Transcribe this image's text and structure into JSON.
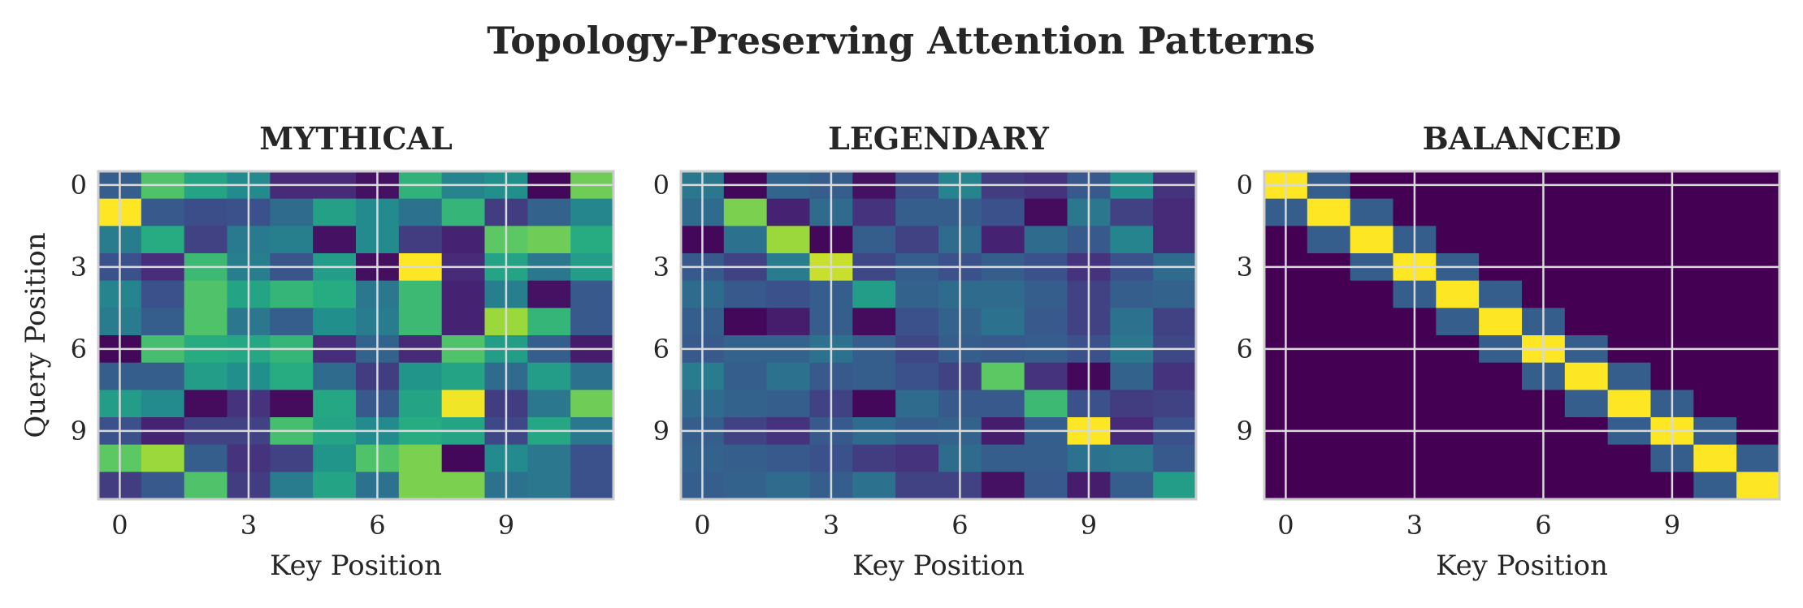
{
  "chart_data": {
    "type": "heatmap",
    "title": "Topology-Preserving Attention Patterns",
    "colormap": "viridis",
    "grid": true,
    "panels": [
      {
        "title": "MYTHICAL",
        "xlabel": "Key Position",
        "ylabel": "Query Position",
        "x_ticks": [
          0,
          3,
          6,
          9
        ],
        "y_ticks": [
          0,
          3,
          6,
          9
        ],
        "values": [
          [
            0.3,
            0.72,
            0.58,
            0.48,
            0.12,
            0.12,
            0.05,
            0.65,
            0.45,
            0.5,
            0.02,
            0.78
          ],
          [
            1.0,
            0.28,
            0.24,
            0.25,
            0.35,
            0.57,
            0.48,
            0.38,
            0.66,
            0.18,
            0.32,
            0.46
          ],
          [
            0.42,
            0.62,
            0.2,
            0.41,
            0.43,
            0.05,
            0.48,
            0.18,
            0.1,
            0.75,
            0.78,
            0.62
          ],
          [
            0.25,
            0.13,
            0.68,
            0.43,
            0.27,
            0.55,
            0.04,
            1.0,
            0.12,
            0.58,
            0.4,
            0.55
          ],
          [
            0.45,
            0.25,
            0.72,
            0.58,
            0.66,
            0.62,
            0.4,
            0.68,
            0.1,
            0.43,
            0.05,
            0.28
          ],
          [
            0.42,
            0.3,
            0.72,
            0.4,
            0.3,
            0.5,
            0.42,
            0.68,
            0.1,
            0.85,
            0.66,
            0.28
          ],
          [
            0.02,
            0.7,
            0.62,
            0.6,
            0.66,
            0.13,
            0.32,
            0.12,
            0.72,
            0.55,
            0.3,
            0.08
          ],
          [
            0.3,
            0.3,
            0.55,
            0.5,
            0.62,
            0.35,
            0.18,
            0.52,
            0.58,
            0.35,
            0.55,
            0.38
          ],
          [
            0.55,
            0.48,
            0.03,
            0.15,
            0.03,
            0.6,
            0.28,
            0.58,
            0.98,
            0.18,
            0.4,
            0.78
          ],
          [
            0.25,
            0.1,
            0.2,
            0.2,
            0.7,
            0.58,
            0.48,
            0.62,
            0.58,
            0.22,
            0.6,
            0.4
          ],
          [
            0.75,
            0.85,
            0.3,
            0.15,
            0.2,
            0.52,
            0.72,
            0.8,
            0.02,
            0.48,
            0.4,
            0.25
          ],
          [
            0.18,
            0.28,
            0.72,
            0.18,
            0.42,
            0.58,
            0.38,
            0.8,
            0.8,
            0.38,
            0.4,
            0.25
          ]
        ]
      },
      {
        "title": "LEGENDARY",
        "xlabel": "Key Position",
        "ylabel": "",
        "x_ticks": [
          0,
          3,
          6,
          9
        ],
        "y_ticks": [
          0,
          3,
          6,
          9
        ],
        "values": [
          [
            0.4,
            0.02,
            0.33,
            0.3,
            0.05,
            0.25,
            0.45,
            0.18,
            0.15,
            0.28,
            0.5,
            0.15
          ],
          [
            0.35,
            0.8,
            0.1,
            0.35,
            0.15,
            0.3,
            0.3,
            0.25,
            0.03,
            0.4,
            0.2,
            0.12
          ],
          [
            0.02,
            0.38,
            0.85,
            0.02,
            0.3,
            0.2,
            0.35,
            0.1,
            0.35,
            0.28,
            0.45,
            0.12
          ],
          [
            0.28,
            0.2,
            0.42,
            0.92,
            0.22,
            0.3,
            0.25,
            0.3,
            0.25,
            0.15,
            0.25,
            0.35
          ],
          [
            0.35,
            0.28,
            0.25,
            0.3,
            0.55,
            0.32,
            0.35,
            0.35,
            0.3,
            0.2,
            0.3,
            0.32
          ],
          [
            0.3,
            0.02,
            0.08,
            0.3,
            0.03,
            0.25,
            0.32,
            0.38,
            0.28,
            0.2,
            0.38,
            0.2
          ],
          [
            0.28,
            0.32,
            0.32,
            0.38,
            0.3,
            0.22,
            0.3,
            0.28,
            0.3,
            0.25,
            0.4,
            0.22
          ],
          [
            0.42,
            0.3,
            0.38,
            0.28,
            0.3,
            0.25,
            0.2,
            0.75,
            0.15,
            0.02,
            0.32,
            0.15
          ],
          [
            0.35,
            0.32,
            0.3,
            0.2,
            0.02,
            0.35,
            0.28,
            0.28,
            0.68,
            0.25,
            0.18,
            0.2
          ],
          [
            0.3,
            0.2,
            0.15,
            0.28,
            0.35,
            0.3,
            0.32,
            0.08,
            0.3,
            1.0,
            0.12,
            0.25
          ],
          [
            0.32,
            0.3,
            0.28,
            0.25,
            0.18,
            0.15,
            0.35,
            0.3,
            0.3,
            0.38,
            0.4,
            0.28
          ],
          [
            0.3,
            0.32,
            0.35,
            0.3,
            0.38,
            0.2,
            0.2,
            0.05,
            0.28,
            0.08,
            0.3,
            0.55
          ]
        ]
      },
      {
        "title": "BALANCED",
        "xlabel": "Key Position",
        "ylabel": "",
        "x_ticks": [
          0,
          3,
          6,
          9
        ],
        "y_ticks": [
          0,
          3,
          6,
          9
        ],
        "values": [
          [
            1.0,
            0.3,
            0.0,
            0.0,
            0.0,
            0.0,
            0.0,
            0.0,
            0.0,
            0.0,
            0.0,
            0.0
          ],
          [
            0.3,
            1.0,
            0.3,
            0.0,
            0.0,
            0.0,
            0.0,
            0.0,
            0.0,
            0.0,
            0.0,
            0.0
          ],
          [
            0.0,
            0.3,
            1.0,
            0.3,
            0.0,
            0.0,
            0.0,
            0.0,
            0.0,
            0.0,
            0.0,
            0.0
          ],
          [
            0.0,
            0.0,
            0.3,
            1.0,
            0.3,
            0.0,
            0.0,
            0.0,
            0.0,
            0.0,
            0.0,
            0.0
          ],
          [
            0.0,
            0.0,
            0.0,
            0.3,
            1.0,
            0.3,
            0.0,
            0.0,
            0.0,
            0.0,
            0.0,
            0.0
          ],
          [
            0.0,
            0.0,
            0.0,
            0.0,
            0.3,
            1.0,
            0.3,
            0.0,
            0.0,
            0.0,
            0.0,
            0.0
          ],
          [
            0.0,
            0.0,
            0.0,
            0.0,
            0.0,
            0.3,
            1.0,
            0.3,
            0.0,
            0.0,
            0.0,
            0.0
          ],
          [
            0.0,
            0.0,
            0.0,
            0.0,
            0.0,
            0.0,
            0.3,
            1.0,
            0.3,
            0.0,
            0.0,
            0.0
          ],
          [
            0.0,
            0.0,
            0.0,
            0.0,
            0.0,
            0.0,
            0.0,
            0.3,
            1.0,
            0.3,
            0.0,
            0.0
          ],
          [
            0.0,
            0.0,
            0.0,
            0.0,
            0.0,
            0.0,
            0.0,
            0.0,
            0.3,
            1.0,
            0.3,
            0.0
          ],
          [
            0.0,
            0.0,
            0.0,
            0.0,
            0.0,
            0.0,
            0.0,
            0.0,
            0.0,
            0.3,
            1.0,
            0.3
          ],
          [
            0.0,
            0.0,
            0.0,
            0.0,
            0.0,
            0.0,
            0.0,
            0.0,
            0.0,
            0.0,
            0.3,
            1.0
          ]
        ]
      }
    ]
  }
}
